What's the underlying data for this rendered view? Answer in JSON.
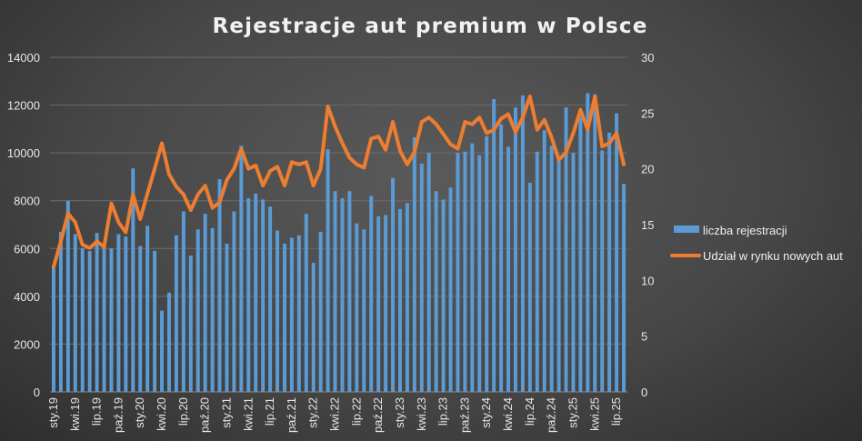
{
  "chart_data": {
    "type": "bar",
    "title": "Rejestracje aut premium w Polsce",
    "colors": {
      "bar": "#5b9bd5",
      "line": "#ed7d31",
      "grid": "#6c6c6c",
      "text": "#e6e6e6"
    },
    "legend": {
      "placement": "right"
    },
    "y_left": {
      "min": 0,
      "max": 14000,
      "step": 2000
    },
    "y_right": {
      "min": 0,
      "max": 30,
      "step": 5
    },
    "months": [
      "sty.19",
      "lut.19",
      "mar.19",
      "kwi.19",
      "maj.19",
      "cze.19",
      "lip.19",
      "sie.19",
      "wrz.19",
      "paź.19",
      "lis.19",
      "gru.19",
      "sty.20",
      "lut.20",
      "mar.20",
      "kwi.20",
      "maj.20",
      "cze.20",
      "lip.20",
      "sie.20",
      "wrz.20",
      "paź.20",
      "lis.20",
      "gru.20",
      "sty.21",
      "lut.21",
      "mar.21",
      "kwi.21",
      "maj.21",
      "cze.21",
      "lip.21",
      "sie.21",
      "wrz.21",
      "paź.21",
      "lis.21",
      "gru.21",
      "sty.22",
      "lut.22",
      "mar.22",
      "kwi.22",
      "maj.22",
      "cze.22",
      "lip.22",
      "sie.22",
      "wrz.22",
      "paź.22",
      "lis.22",
      "gru.22",
      "sty.23",
      "lut.23",
      "mar.23",
      "kwi.23",
      "maj.23",
      "cze.23",
      "lip.23",
      "sie.23",
      "wrz.23",
      "paź.23",
      "lis.23",
      "gru.23",
      "sty.24",
      "lut.24",
      "mar.24",
      "kwi.24",
      "maj.24",
      "cze.24",
      "lip.24",
      "sie.24",
      "wrz.24",
      "paź.24",
      "lis.24",
      "gru.24",
      "sty.25",
      "lut.25",
      "mar.25",
      "kwi.25",
      "maj.25",
      "cze.25",
      "lip.25",
      "sie.25"
    ],
    "x_tick_labels": [
      "sty.19",
      "kwi.19",
      "lip.19",
      "paź.19",
      "sty.20",
      "kwi.20",
      "lip.20",
      "paź.20",
      "sty.21",
      "kwi.21",
      "lip.21",
      "paź.21",
      "sty.22",
      "kwi.22",
      "lip.22",
      "paź.22",
      "sty.23",
      "kwi.23",
      "lip.23",
      "paź.23",
      "sty.24",
      "kwi.24",
      "lip.24",
      "paź.24",
      "sty.25",
      "kwi.25",
      "lip.25"
    ],
    "series": [
      {
        "name": "liczba rejestracji",
        "type": "bar",
        "axis": "left",
        "values": [
          5300,
          6700,
          8000,
          6600,
          6000,
          5900,
          6650,
          6050,
          6000,
          6600,
          6500,
          9350,
          6100,
          6950,
          5900,
          3400,
          4150,
          6550,
          7550,
          5700,
          6800,
          7450,
          6850,
          8900,
          6200,
          7550,
          10300,
          8100,
          8300,
          8050,
          7750,
          6750,
          6200,
          6450,
          6550,
          7450,
          5400,
          6700,
          10150,
          8400,
          8100,
          8400,
          7050,
          6800,
          8200,
          7350,
          7400,
          8950,
          7650,
          7900,
          10650,
          9550,
          10000,
          8400,
          8050,
          8550,
          10000,
          10050,
          10400,
          9900,
          10700,
          12250,
          11200,
          10250,
          11900,
          12400,
          8750,
          10050,
          10950,
          10300,
          9700,
          11900,
          10000,
          11500,
          12500,
          12450,
          10100,
          10850,
          11650,
          8700
        ]
      },
      {
        "name": "Udział w rynku nowych aut",
        "type": "line",
        "axis": "right",
        "values": [
          11.2,
          13.5,
          16.0,
          15.2,
          13.2,
          12.9,
          13.5,
          13.0,
          16.9,
          15.2,
          14.3,
          17.7,
          15.5,
          17.8,
          20.0,
          22.3,
          19.5,
          18.4,
          17.7,
          16.3,
          17.7,
          18.5,
          16.5,
          17.0,
          19.0,
          20.0,
          21.8,
          20.0,
          20.3,
          18.5,
          19.8,
          20.2,
          18.5,
          20.6,
          20.4,
          20.6,
          18.5,
          20.0,
          25.6,
          23.8,
          22.3,
          21.0,
          20.4,
          20.1,
          22.7,
          22.9,
          21.7,
          24.2,
          21.6,
          20.4,
          21.5,
          24.2,
          24.6,
          24.0,
          23.1,
          22.2,
          21.8,
          24.2,
          24.0,
          24.6,
          23.2,
          23.5,
          24.5,
          24.9,
          23.3,
          24.6,
          26.5,
          23.5,
          24.4,
          22.8,
          20.8,
          21.5,
          23.2,
          25.3,
          23.5,
          26.5,
          22.0,
          22.3,
          23.2,
          20.4
        ]
      }
    ]
  }
}
